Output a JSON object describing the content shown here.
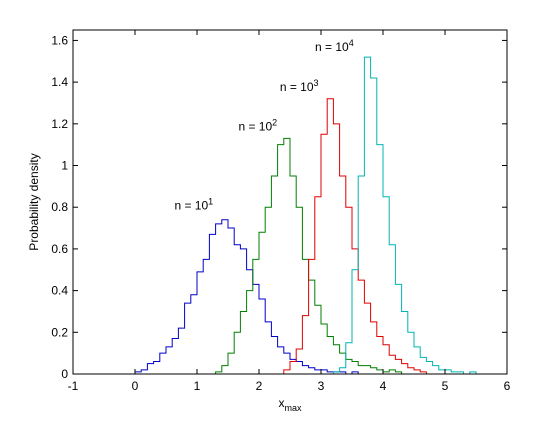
{
  "chart_data": {
    "type": "line",
    "xlabel": "x",
    "xlabel_sub": "max",
    "ylabel": "Probability density",
    "xlim": [
      -1,
      6
    ],
    "ylim": [
      0,
      1.65
    ],
    "xticks": [
      "-1",
      "0",
      "1",
      "2",
      "3",
      "4",
      "5",
      "6"
    ],
    "yticks": [
      "0",
      "0.2",
      "0.4",
      "0.6",
      "0.8",
      "1",
      "1.2",
      "1.4",
      "1.6"
    ],
    "grid": false,
    "series": [
      {
        "color": "#0000c8",
        "annotation": {
          "base": "n = 10",
          "exp": "1"
        },
        "x": [
          0.0,
          0.1,
          0.2,
          0.3,
          0.4,
          0.5,
          0.6,
          0.7,
          0.8,
          0.9,
          1.0,
          1.1,
          1.2,
          1.3,
          1.4,
          1.5,
          1.6,
          1.7,
          1.8,
          1.9,
          2.0,
          2.1,
          2.2,
          2.3,
          2.4,
          2.5,
          2.6,
          2.7,
          2.8,
          2.9,
          3.0,
          3.1,
          3.2,
          3.3,
          3.4,
          3.5,
          3.6
        ],
        "y": [
          0.01,
          0.02,
          0.05,
          0.06,
          0.1,
          0.13,
          0.17,
          0.22,
          0.34,
          0.38,
          0.49,
          0.55,
          0.67,
          0.72,
          0.74,
          0.7,
          0.62,
          0.6,
          0.5,
          0.43,
          0.36,
          0.25,
          0.18,
          0.13,
          0.1,
          0.07,
          0.06,
          0.04,
          0.03,
          0.02,
          0.02,
          0.01,
          0.01,
          0.01,
          0.0,
          0.01,
          0.0
        ]
      },
      {
        "color": "#007f00",
        "annotation": {
          "base": "n = 10",
          "exp": "2"
        },
        "x": [
          1.3,
          1.4,
          1.5,
          1.6,
          1.7,
          1.8,
          1.9,
          2.0,
          2.1,
          2.2,
          2.3,
          2.4,
          2.5,
          2.6,
          2.7,
          2.8,
          2.9,
          3.0,
          3.1,
          3.2,
          3.3,
          3.4,
          3.5,
          3.6,
          3.7,
          3.8,
          3.9,
          4.0,
          4.1,
          4.2,
          4.3
        ],
        "y": [
          0.01,
          0.04,
          0.1,
          0.2,
          0.3,
          0.4,
          0.55,
          0.68,
          0.8,
          0.95,
          1.1,
          1.13,
          0.95,
          0.8,
          0.55,
          0.45,
          0.33,
          0.24,
          0.18,
          0.14,
          0.1,
          0.07,
          0.06,
          0.04,
          0.04,
          0.03,
          0.02,
          0.01,
          0.02,
          0.01,
          0.0
        ]
      },
      {
        "color": "#e00000",
        "annotation": {
          "base": "n = 10",
          "exp": "3"
        },
        "x": [
          2.4,
          2.5,
          2.6,
          2.7,
          2.8,
          2.9,
          3.0,
          3.1,
          3.2,
          3.3,
          3.4,
          3.5,
          3.6,
          3.7,
          3.8,
          3.9,
          4.0,
          4.1,
          4.2,
          4.3,
          4.4,
          4.5,
          4.6,
          4.7
        ],
        "y": [
          0.02,
          0.06,
          0.12,
          0.28,
          0.55,
          0.85,
          1.15,
          1.32,
          1.2,
          0.95,
          0.8,
          0.6,
          0.45,
          0.34,
          0.25,
          0.18,
          0.14,
          0.09,
          0.07,
          0.05,
          0.03,
          0.02,
          0.01,
          0.0
        ]
      },
      {
        "color": "#00b4b4",
        "annotation": {
          "base": "n = 10",
          "exp": "4"
        },
        "x": [
          3.2,
          3.3,
          3.4,
          3.5,
          3.6,
          3.7,
          3.8,
          3.9,
          4.0,
          4.1,
          4.2,
          4.3,
          4.4,
          4.5,
          4.6,
          4.7,
          4.8,
          4.9,
          5.0,
          5.1,
          5.2,
          5.3,
          5.4,
          5.5
        ],
        "y": [
          0.01,
          0.03,
          0.15,
          0.5,
          0.95,
          1.52,
          1.42,
          1.1,
          0.85,
          0.62,
          0.43,
          0.3,
          0.2,
          0.13,
          0.08,
          0.06,
          0.04,
          0.02,
          0.02,
          0.01,
          0.01,
          0.0,
          0.01,
          0.0
        ]
      }
    ]
  }
}
